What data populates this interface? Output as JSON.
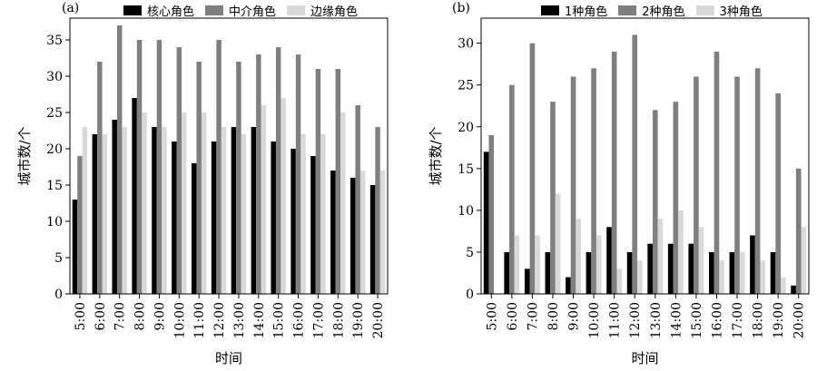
{
  "chart_data": [
    {
      "panel_label": "(a)",
      "type": "bar",
      "xlabel": "时间",
      "ylabel": "城市数/个",
      "ylim": [
        0,
        38
      ],
      "yticks": [
        0,
        5,
        10,
        15,
        20,
        25,
        30,
        35
      ],
      "categories": [
        "5:00",
        "6:00",
        "7:00",
        "8:00",
        "9:00",
        "10:00",
        "11:00",
        "12:00",
        "13:00",
        "14:00",
        "15:00",
        "16:00",
        "17:00",
        "18:00",
        "19:00",
        "20:00"
      ],
      "series": [
        {
          "name": "核心角色",
          "color": "#000000",
          "values": [
            13,
            22,
            24,
            27,
            23,
            21,
            18,
            21,
            23,
            23,
            21,
            20,
            19,
            17,
            16,
            15
          ]
        },
        {
          "name": "中介角色",
          "color": "#7f7f7f",
          "values": [
            19,
            32,
            37,
            35,
            35,
            34,
            32,
            35,
            32,
            33,
            34,
            33,
            31,
            31,
            26,
            23
          ]
        },
        {
          "name": "边缘角色",
          "color": "#d9d9d9",
          "values": [
            23,
            22,
            23,
            25,
            23,
            25,
            25,
            23,
            22,
            26,
            27,
            22,
            22,
            25,
            17,
            17
          ]
        }
      ],
      "legend_position": "top"
    },
    {
      "panel_label": "(b)",
      "type": "bar",
      "xlabel": "时间",
      "ylabel": "城市数/个",
      "ylim": [
        0,
        33
      ],
      "yticks": [
        0,
        5,
        10,
        15,
        20,
        25,
        30
      ],
      "categories": [
        "5:00",
        "6:00",
        "7:00",
        "8:00",
        "9:00",
        "10:00",
        "11:00",
        "12:00",
        "13:00",
        "14:00",
        "15:00",
        "16:00",
        "17:00",
        "18:00",
        "19:00",
        "20:00"
      ],
      "series": [
        {
          "name": "1种角色",
          "color": "#000000",
          "values": [
            17,
            5,
            3,
            5,
            2,
            5,
            8,
            5,
            6,
            6,
            6,
            5,
            5,
            7,
            5,
            1
          ]
        },
        {
          "name": "2种角色",
          "color": "#7f7f7f",
          "values": [
            19,
            25,
            30,
            23,
            26,
            27,
            29,
            31,
            22,
            23,
            26,
            29,
            26,
            27,
            24,
            15
          ]
        },
        {
          "name": "3种角色",
          "color": "#d9d9d9",
          "values": [
            0,
            7,
            7,
            12,
            9,
            7,
            3,
            4,
            9,
            10,
            8,
            4,
            5,
            4,
            2,
            8
          ]
        }
      ],
      "legend_position": "top"
    }
  ]
}
